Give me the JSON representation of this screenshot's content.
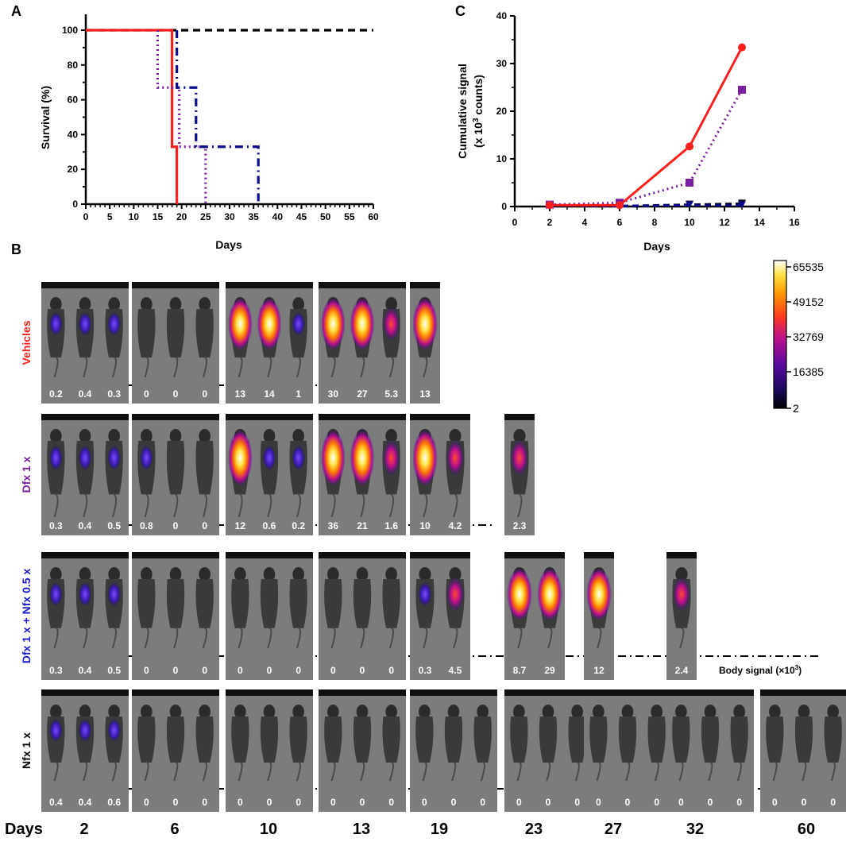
{
  "panel_labels": {
    "a": "A",
    "b": "B",
    "c": "C"
  },
  "colors": {
    "vehicles": "#ff1e1e",
    "dfx": "#7a1fa2",
    "dfx_nfx": "#0a0a8c",
    "nfx": "#000000",
    "days_color": "#000000"
  },
  "chart_data": [
    {
      "id": "A",
      "type": "line",
      "step": true,
      "title": "",
      "xlabel": "Days",
      "ylabel": "Survival (%)",
      "xlim": [
        0,
        60
      ],
      "ylim": [
        0,
        100
      ],
      "xticks": [
        0,
        5,
        10,
        15,
        20,
        25,
        30,
        35,
        40,
        45,
        50,
        55,
        60
      ],
      "yticks": [
        0,
        20,
        40,
        60,
        80,
        100
      ],
      "series": [
        {
          "name": "Nfx 1 x",
          "style": "dashed",
          "color": "#000000",
          "x": [
            0,
            60
          ],
          "y": [
            100,
            100
          ]
        },
        {
          "name": "Vehicles",
          "style": "solid",
          "color": "#ff1e1e",
          "x": [
            0,
            18,
            18,
            19,
            19
          ],
          "y": [
            100,
            100,
            33,
            33,
            0
          ]
        },
        {
          "name": "Dfx 1 x",
          "style": "dotted",
          "color": "#7a1fa2",
          "x": [
            15,
            15,
            19.5,
            19.5,
            25,
            25
          ],
          "y": [
            100,
            67,
            67,
            33,
            33,
            0
          ]
        },
        {
          "name": "Dfx 1 x + Nfx 0.5 x",
          "style": "dashdot",
          "color": "#0a0a8c",
          "x": [
            19,
            19,
            23,
            23,
            36,
            36
          ],
          "y": [
            100,
            67,
            67,
            33,
            33,
            0
          ]
        }
      ]
    },
    {
      "id": "C",
      "type": "line",
      "title": "",
      "xlabel": "Days",
      "ylabel_line1": "Cumulative signal",
      "ylabel_line2_pre": "(x 10",
      "ylabel_sup": "3",
      "ylabel_line2_post": " counts)",
      "xlim": [
        0,
        16
      ],
      "ylim": [
        0,
        40
      ],
      "xticks": [
        0,
        2,
        4,
        6,
        8,
        10,
        12,
        14,
        16
      ],
      "yticks": [
        0,
        10,
        20,
        30,
        40
      ],
      "series": [
        {
          "name": "Vehicles",
          "style": "solid",
          "marker": "circle",
          "color": "#ff1e1e",
          "x": [
            2,
            6,
            10,
            13
          ],
          "y": [
            0.3,
            0.3,
            12.6,
            33.4
          ]
        },
        {
          "name": "Dfx 1 x",
          "style": "dotted",
          "marker": "square",
          "color": "#7a1fa2",
          "x": [
            2,
            6,
            10,
            13
          ],
          "y": [
            0.4,
            0.8,
            5,
            24.5
          ]
        },
        {
          "name": "Dfx 1 x + Nfx 0.5 x",
          "style": "dashed",
          "marker": "triangle-down",
          "color": "#0a0a8c",
          "x": [
            2,
            6,
            10,
            13
          ],
          "y": [
            0.3,
            0.1,
            0.3,
            0.3
          ]
        },
        {
          "name": "Nfx 1 x",
          "style": "dashed",
          "marker": "triangle-down",
          "color": "#000000",
          "x": [
            2,
            6,
            10,
            13
          ],
          "y": [
            0.3,
            0.1,
            0.4,
            0.6
          ]
        }
      ]
    }
  ],
  "colorbar": {
    "labels": [
      "65535",
      "49152",
      "32769",
      "16385",
      "2"
    ]
  },
  "imaging": {
    "days_label": "Days",
    "days": [
      "2",
      "6",
      "10",
      "13",
      "19",
      "23",
      "27",
      "32",
      "60"
    ],
    "body_signal_label_pre": "Body signal (×10",
    "body_signal_sup": "3",
    "body_signal_label_post": ")",
    "rows": [
      {
        "label": "Vehicles",
        "color": "#ff1e1e",
        "values": [
          [
            "0.2",
            "0.4",
            "0.3"
          ],
          [
            "0",
            "0",
            "0"
          ],
          [
            "13",
            "14",
            "1"
          ],
          [
            "30",
            "27",
            "5.3"
          ],
          [
            "13"
          ]
        ]
      },
      {
        "label": "Dfx 1 x",
        "color": "#7a1fa2",
        "values": [
          [
            "0.3",
            "0.4",
            "0.5"
          ],
          [
            "0.8",
            "0",
            "0"
          ],
          [
            "12",
            "0.6",
            "0.2"
          ],
          [
            "36",
            "21",
            "1.6"
          ],
          [
            "10",
            "4.2"
          ],
          [
            "2.3"
          ]
        ]
      },
      {
        "label_part1": "Dfx 1 x",
        "label_plus": " + ",
        "label_part2": "Nfx 0.5 x",
        "color": "#1a1acc",
        "values": [
          [
            "0.3",
            "0.4",
            "0.5"
          ],
          [
            "0",
            "0",
            "0"
          ],
          [
            "0",
            "0",
            "0"
          ],
          [
            "0",
            "0",
            "0"
          ],
          [
            "0.3",
            "4.5"
          ],
          [
            "8.7",
            "29"
          ],
          [
            "12"
          ],
          [
            "2.4"
          ]
        ]
      },
      {
        "label": "Nfx 1 x",
        "color": "#000000",
        "values": [
          [
            "0.4",
            "0.4",
            "0.6"
          ],
          [
            "0",
            "0",
            "0"
          ],
          [
            "0",
            "0",
            "0"
          ],
          [
            "0",
            "0",
            "0"
          ],
          [
            "0",
            "0",
            "0"
          ],
          [
            "0",
            "0",
            "0"
          ],
          [
            "0",
            "0",
            "0"
          ],
          [
            "0",
            "0",
            "0"
          ],
          [
            "0",
            "0",
            "0"
          ]
        ]
      }
    ]
  }
}
